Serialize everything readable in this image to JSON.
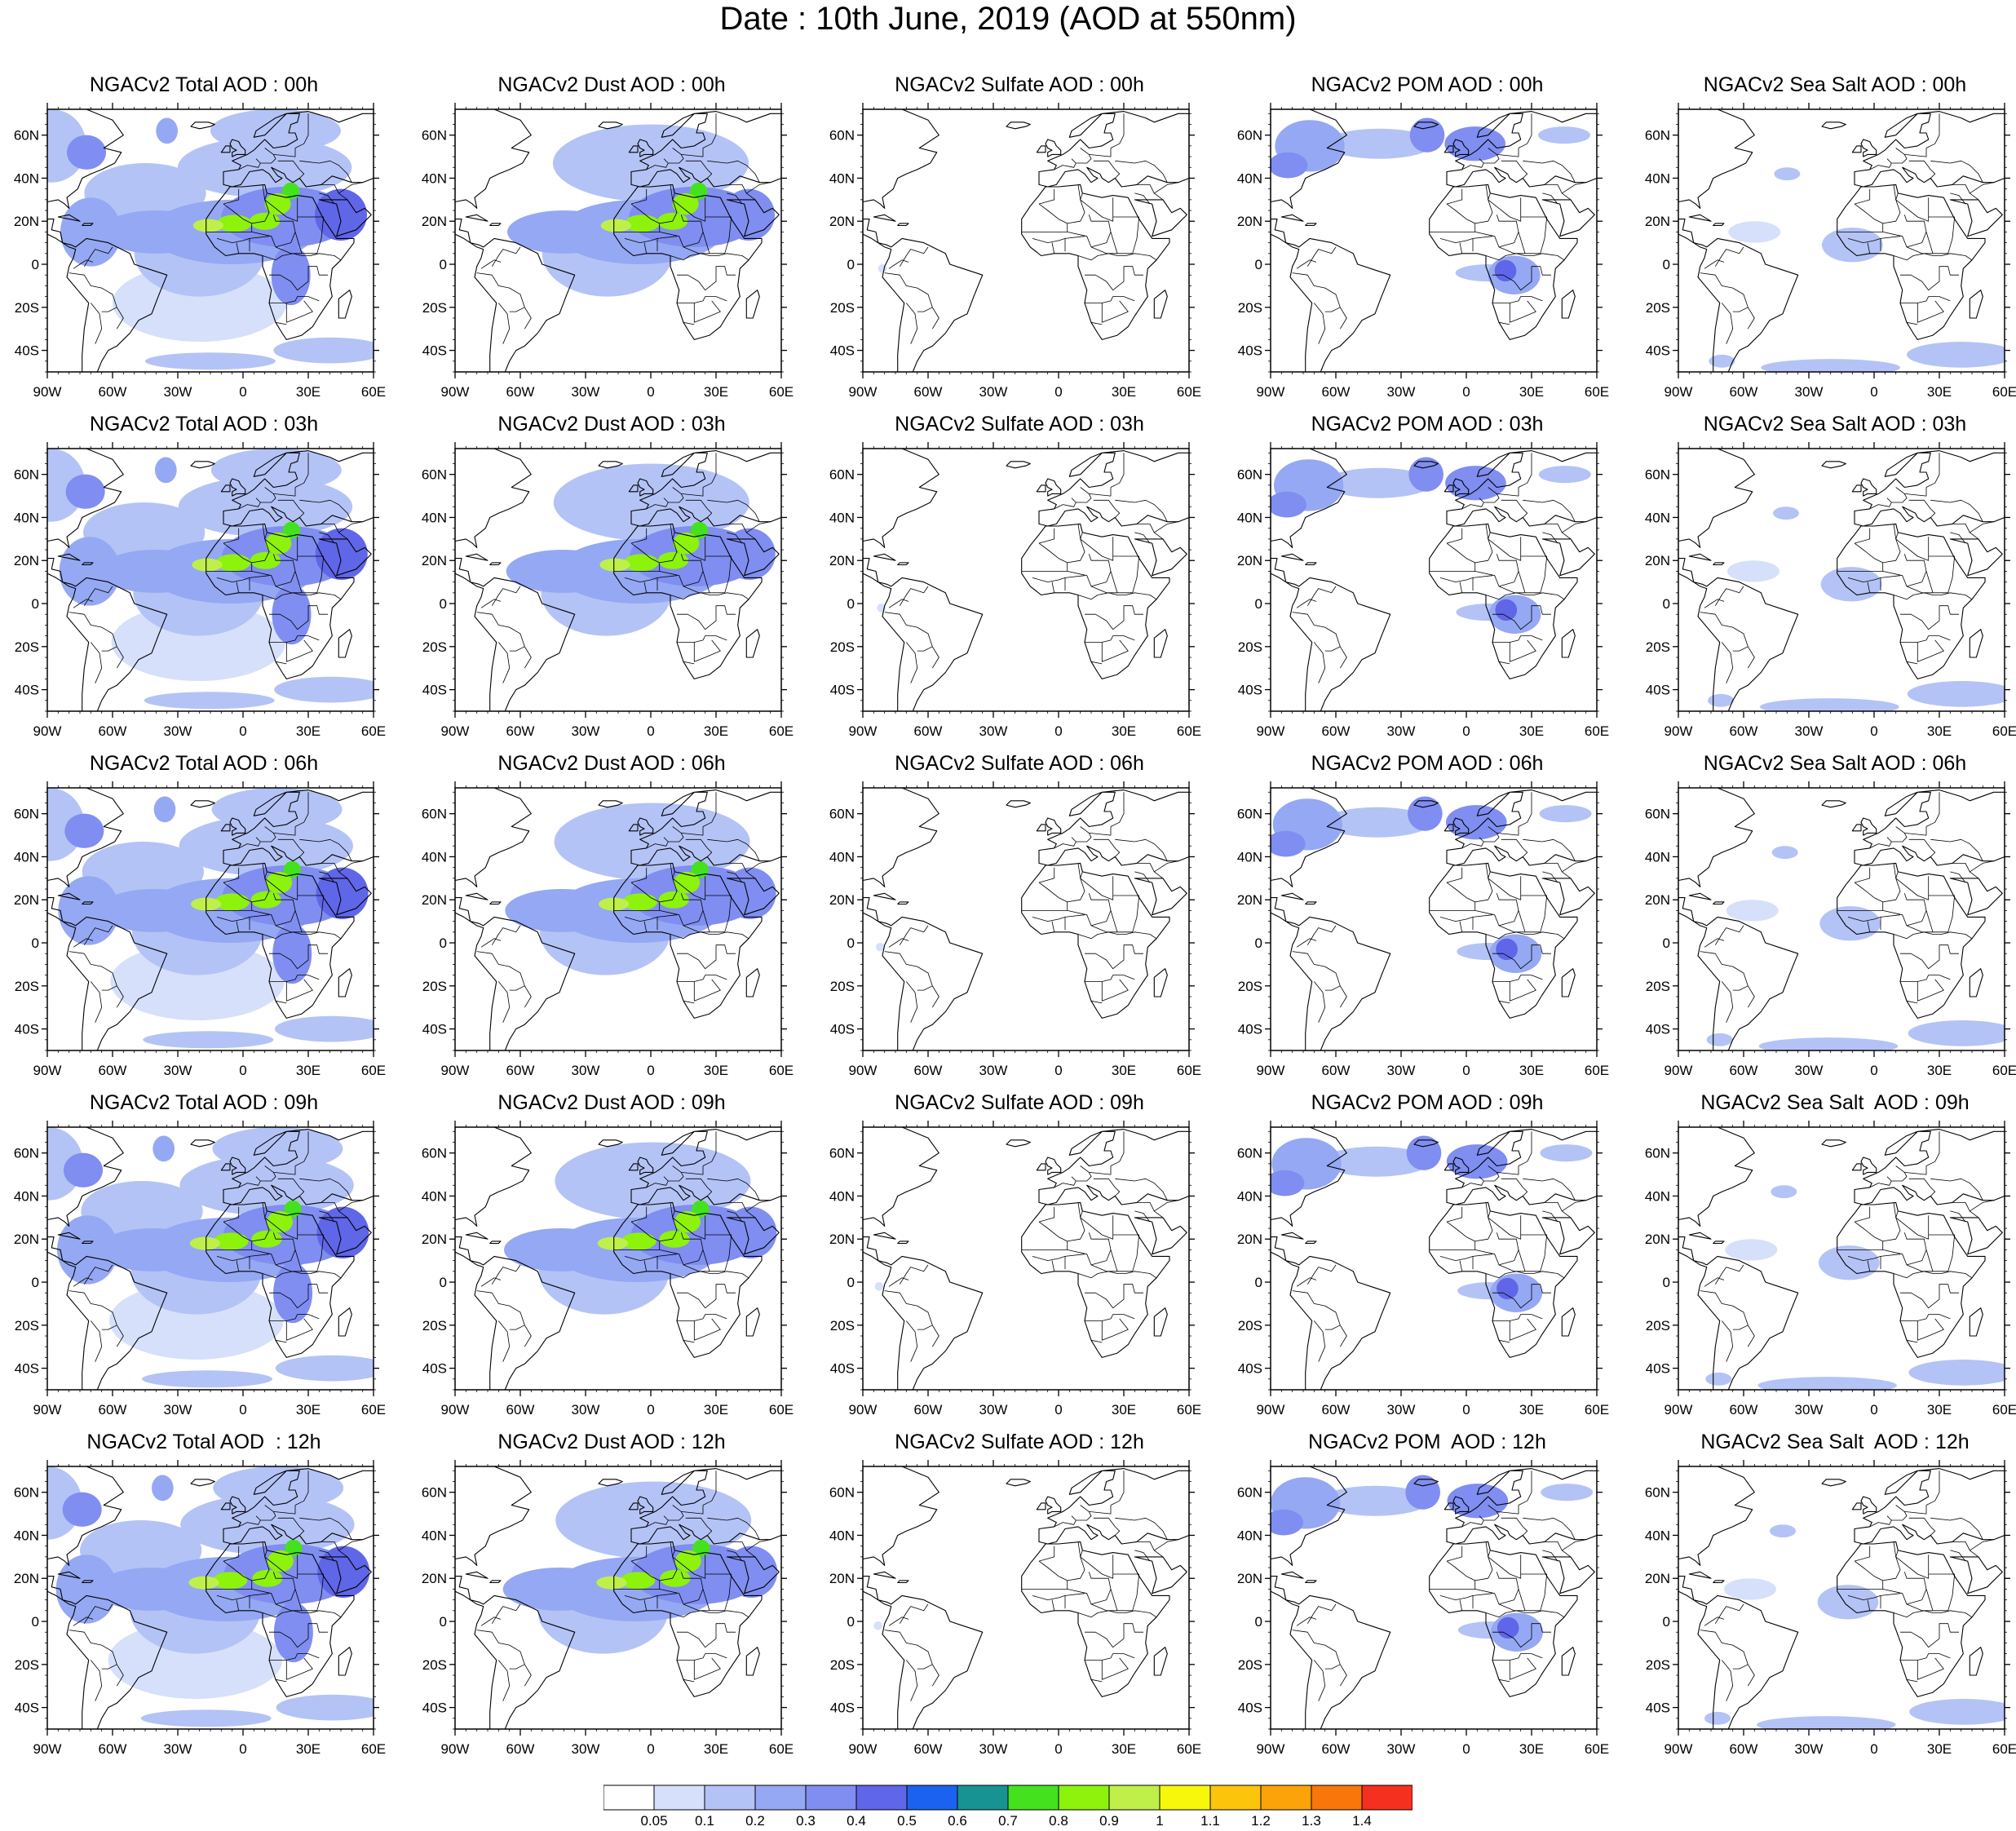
{
  "title": "Date : 10th June, 2019 (AOD at 550nm)",
  "lat_labels": [
    "60N",
    "40N",
    "20N",
    "0",
    "20S",
    "40S"
  ],
  "lon_labels": [
    "90W",
    "60W",
    "30W",
    "0",
    "30E",
    "60E"
  ],
  "panels": [
    {
      "title": "NGACv2 Total AOD : 00h",
      "field": "total",
      "hour": 0
    },
    {
      "title": "NGACv2 Dust AOD : 00h",
      "field": "dust",
      "hour": 0
    },
    {
      "title": "NGACv2 Sulfate AOD : 00h",
      "field": "sulfate",
      "hour": 0
    },
    {
      "title": "NGACv2 POM AOD : 00h",
      "field": "pom",
      "hour": 0
    },
    {
      "title": "NGACv2 Sea Salt AOD : 00h",
      "field": "seasalt",
      "hour": 0
    },
    {
      "title": "NGACv2 Total AOD : 03h",
      "field": "total",
      "hour": 3
    },
    {
      "title": "NGACv2 Dust AOD : 03h",
      "field": "dust",
      "hour": 3
    },
    {
      "title": "NGACv2 Sulfate AOD : 03h",
      "field": "sulfate",
      "hour": 3
    },
    {
      "title": "NGACv2 POM AOD : 03h",
      "field": "pom",
      "hour": 3
    },
    {
      "title": "NGACv2 Sea Salt AOD : 03h",
      "field": "seasalt",
      "hour": 3
    },
    {
      "title": "NGACv2 Total AOD : 06h",
      "field": "total",
      "hour": 6
    },
    {
      "title": "NGACv2 Dust AOD : 06h",
      "field": "dust",
      "hour": 6
    },
    {
      "title": "NGACv2 Sulfate AOD : 06h",
      "field": "sulfate",
      "hour": 6
    },
    {
      "title": "NGACv2 POM AOD : 06h",
      "field": "pom",
      "hour": 6
    },
    {
      "title": "NGACv2 Sea Salt AOD : 06h",
      "field": "seasalt",
      "hour": 6
    },
    {
      "title": "NGACv2 Total AOD : 09h",
      "field": "total",
      "hour": 9
    },
    {
      "title": "NGACv2 Dust AOD : 09h",
      "field": "dust",
      "hour": 9
    },
    {
      "title": "NGACv2 Sulfate AOD : 09h",
      "field": "sulfate",
      "hour": 9
    },
    {
      "title": "NGACv2 POM AOD : 09h",
      "field": "pom",
      "hour": 9
    },
    {
      "title": "NGACv2 Sea Salt  AOD : 09h",
      "field": "seasalt",
      "hour": 9
    },
    {
      "title": "NGACv2 Total AOD  : 12h",
      "field": "total",
      "hour": 12
    },
    {
      "title": "NGACv2 Dust AOD : 12h",
      "field": "dust",
      "hour": 12
    },
    {
      "title": "NGACv2 Sulfate AOD : 12h",
      "field": "sulfate",
      "hour": 12
    },
    {
      "title": "NGACv2 POM  AOD : 12h",
      "field": "pom",
      "hour": 12
    },
    {
      "title": "NGACv2 Sea Salt  AOD : 12h",
      "field": "seasalt",
      "hour": 12
    }
  ],
  "colorbar": {
    "labels": [
      "0.05",
      "0.1",
      "0.2",
      "0.3",
      "0.4",
      "0.5",
      "0.6",
      "0.7",
      "0.8",
      "0.9",
      "1",
      "1.1",
      "1.2",
      "1.3",
      "1.4"
    ],
    "colors": [
      "#ffffff",
      "#d6e0fb",
      "#b4c3f6",
      "#95a8f3",
      "#7f8ef0",
      "#5f66e8",
      "#1c62f0",
      "#189393",
      "#44e21e",
      "#8df20c",
      "#bff04a",
      "#f7f70c",
      "#fcc40a",
      "#fca30a",
      "#f9760a",
      "#f6301f"
    ]
  }
}
